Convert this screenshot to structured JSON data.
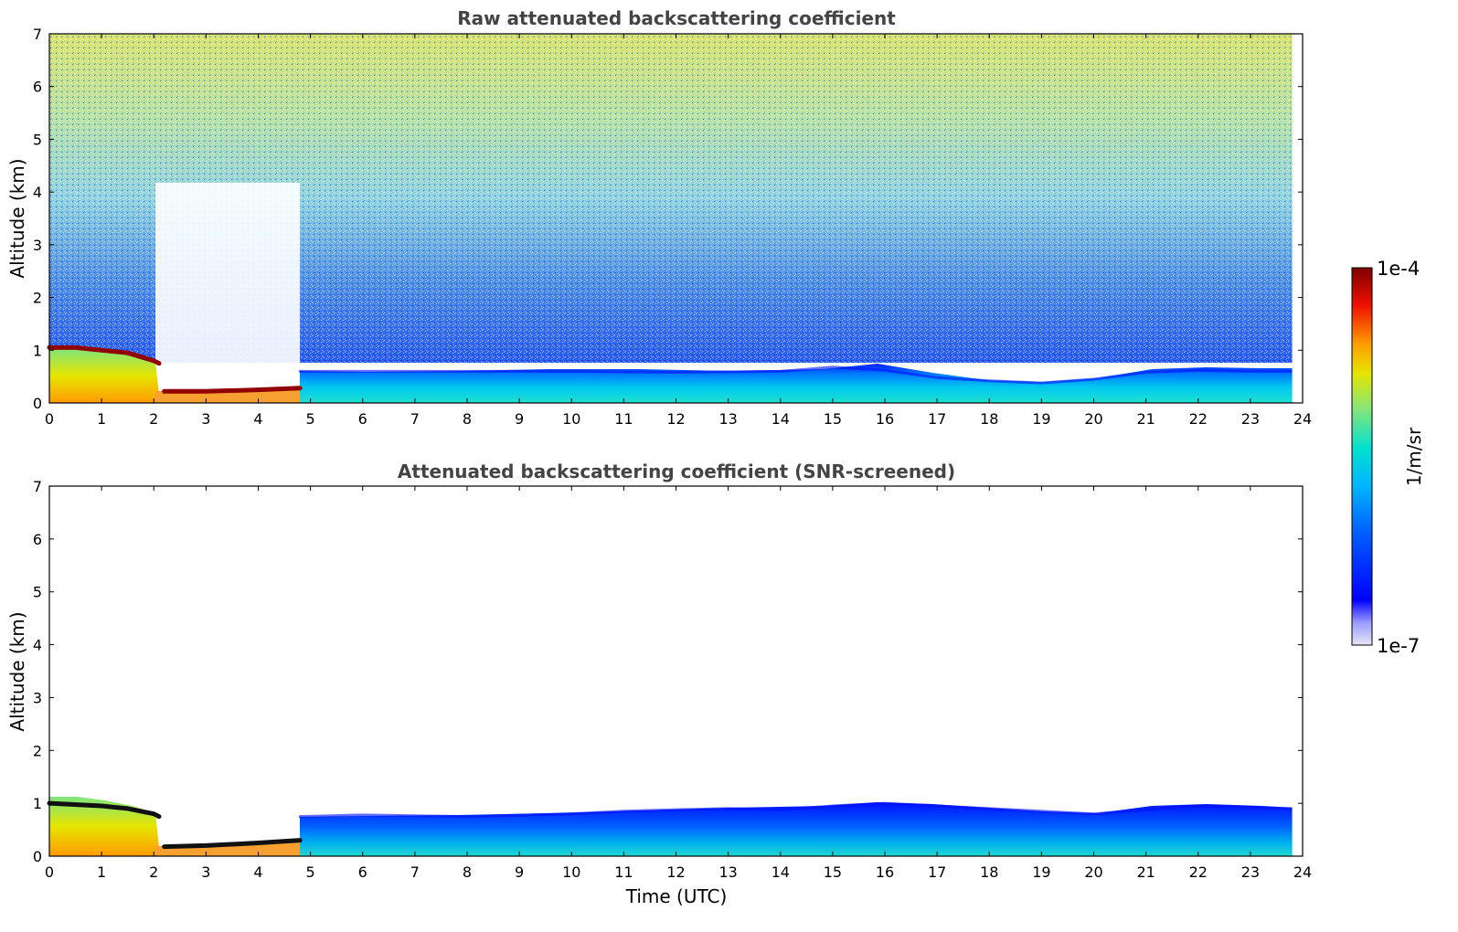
{
  "chart_data": [
    {
      "type": "heatmap",
      "title": "Raw attenuated backscattering coefficient",
      "xlabel": "",
      "ylabel": "Altitude (km)",
      "xlim": [
        0,
        24
      ],
      "ylim": [
        0,
        7
      ],
      "x_ticks": [
        "0",
        "1",
        "2",
        "3",
        "4",
        "5",
        "6",
        "7",
        "8",
        "9",
        "10",
        "11",
        "12",
        "13",
        "14",
        "15",
        "16",
        "17",
        "18",
        "19",
        "20",
        "21",
        "22",
        "23",
        "24"
      ],
      "y_ticks": [
        "0",
        "1",
        "2",
        "3",
        "4",
        "5",
        "6",
        "7"
      ],
      "color_scale": "log",
      "data_end_time": 23.8,
      "layers": [
        {
          "name": "cloud-top layer",
          "points": [
            [
              0,
              1.05
            ],
            [
              0.5,
              1.05
            ],
            [
              1,
              1.0
            ],
            [
              1.5,
              0.95
            ],
            [
              2.0,
              0.8
            ],
            [
              2.1,
              0.75
            ]
          ]
        },
        {
          "name": "low cloud layer",
          "points": [
            [
              2.2,
              0.22
            ],
            [
              3,
              0.22
            ],
            [
              4,
              0.25
            ],
            [
              4.8,
              0.28
            ]
          ]
        },
        {
          "name": "boundary layer top",
          "points": [
            [
              4.8,
              0.6
            ],
            [
              6,
              0.6
            ],
            [
              8,
              0.6
            ],
            [
              10,
              0.6
            ],
            [
              12,
              0.58
            ],
            [
              14,
              0.6
            ],
            [
              15,
              0.68
            ],
            [
              16,
              0.62
            ],
            [
              17,
              0.48
            ],
            [
              18,
              0.42
            ],
            [
              19,
              0.38
            ],
            [
              20,
              0.45
            ],
            [
              21,
              0.58
            ],
            [
              22,
              0.62
            ],
            [
              23,
              0.6
            ],
            [
              23.8,
              0.6
            ]
          ]
        }
      ]
    },
    {
      "type": "heatmap",
      "title": "Attenuated backscattering coefficient (SNR-screened)",
      "xlabel": "Time (UTC)",
      "ylabel": "Altitude (km)",
      "xlim": [
        0,
        24
      ],
      "ylim": [
        0,
        7
      ],
      "x_ticks": [
        "0",
        "1",
        "2",
        "3",
        "4",
        "5",
        "6",
        "7",
        "8",
        "9",
        "10",
        "11",
        "12",
        "13",
        "14",
        "15",
        "16",
        "17",
        "18",
        "19",
        "20",
        "21",
        "22",
        "23",
        "24"
      ],
      "y_ticks": [
        "0",
        "1",
        "2",
        "3",
        "4",
        "5",
        "6",
        "7"
      ],
      "color_scale": "log",
      "data_end_time": 23.8,
      "layers": [
        {
          "name": "cloud-top layer",
          "points": [
            [
              0,
              1.0
            ],
            [
              1,
              0.95
            ],
            [
              1.5,
              0.9
            ],
            [
              2.0,
              0.8
            ],
            [
              2.1,
              0.75
            ]
          ]
        },
        {
          "name": "low cloud layer",
          "points": [
            [
              2.2,
              0.18
            ],
            [
              3,
              0.2
            ],
            [
              4,
              0.25
            ],
            [
              4.8,
              0.3
            ]
          ]
        },
        {
          "name": "boundary layer top",
          "points": [
            [
              4.8,
              0.75
            ],
            [
              6,
              0.78
            ],
            [
              8,
              0.75
            ],
            [
              10,
              0.8
            ],
            [
              11,
              0.85
            ],
            [
              12,
              0.88
            ],
            [
              13,
              0.9
            ],
            [
              14,
              0.88
            ],
            [
              15,
              0.95
            ],
            [
              16,
              1.0
            ],
            [
              17,
              0.95
            ],
            [
              18,
              0.9
            ],
            [
              19,
              0.85
            ],
            [
              20,
              0.8
            ],
            [
              21,
              0.88
            ],
            [
              22,
              0.95
            ],
            [
              23,
              0.92
            ],
            [
              23.8,
              0.9
            ]
          ]
        }
      ]
    }
  ],
  "colorbar": {
    "label": "1/m/sr",
    "max_label": "1e-4",
    "min_label": "1e-7",
    "scale": "log",
    "colormap": [
      "#e6e6f5",
      "#0000ff",
      "#00a0ff",
      "#00e5e5",
      "#7fe57f",
      "#e5e500",
      "#ff7f00",
      "#e50000",
      "#800000"
    ]
  }
}
